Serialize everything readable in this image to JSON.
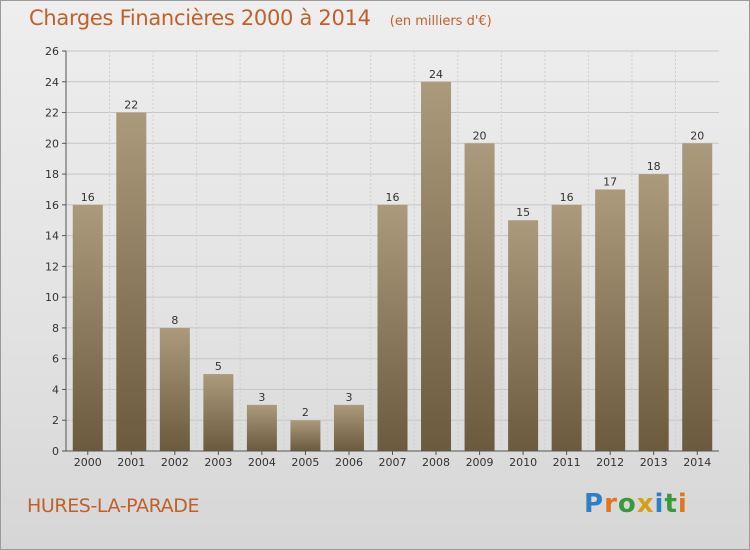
{
  "header": {
    "title": "Charges Financières 2000 à 2014",
    "unit": "(en milliers d'€)"
  },
  "footer": {
    "commune": "HURES-LA-PARADE",
    "logo_letters": [
      {
        "ch": "P",
        "color": "#2f7fc4"
      },
      {
        "ch": "r",
        "color": "#e2761f"
      },
      {
        "ch": "o",
        "color": "#3a9a3a"
      },
      {
        "ch": "x",
        "color": "#d4a017"
      },
      {
        "ch": "i",
        "color": "#2f7fc4"
      },
      {
        "ch": "t",
        "color": "#3a9a3a"
      },
      {
        "ch": "i",
        "color": "#e2761f"
      }
    ]
  },
  "chart_data": {
    "type": "bar",
    "categories": [
      "2000",
      "2001",
      "2002",
      "2003",
      "2004",
      "2005",
      "2006",
      "2007",
      "2008",
      "2009",
      "2010",
      "2011",
      "2012",
      "2013",
      "2014"
    ],
    "values": [
      16,
      22,
      8,
      5,
      3,
      2,
      3,
      16,
      24,
      20,
      15,
      16,
      17,
      18,
      20
    ],
    "ylim": [
      0,
      26
    ],
    "yticks": [
      0,
      2,
      4,
      6,
      8,
      10,
      12,
      14,
      16,
      18,
      20,
      22,
      24,
      26
    ],
    "grid": true,
    "bar_color": "#8a7657"
  }
}
